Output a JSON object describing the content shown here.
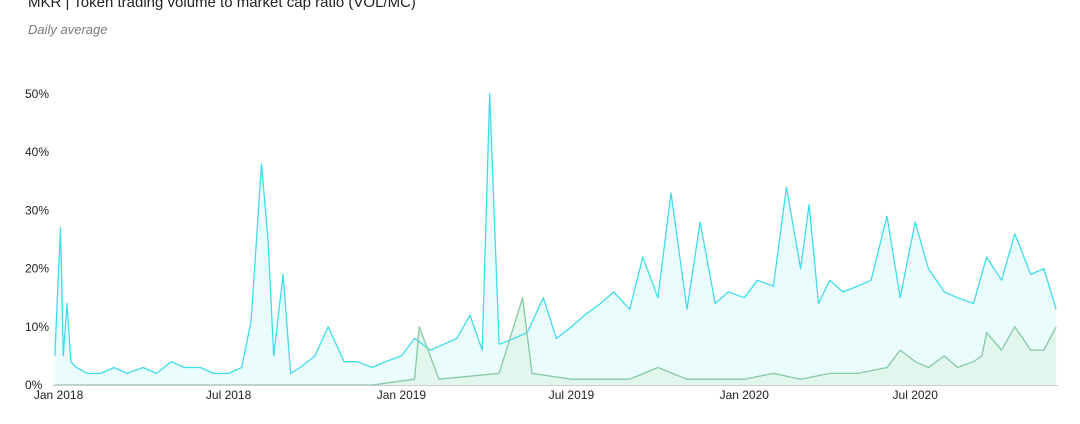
{
  "chart_data": {
    "type": "line",
    "title": "MKR | Token trading volume to market cap ratio (VOL/MC)",
    "subtitle": "Daily average",
    "y_ticks": [
      "0%",
      "10%",
      "20%",
      "30%",
      "40%",
      "50%"
    ],
    "ylim": [
      0,
      0.5
    ],
    "x_ticks": [
      {
        "label": "Jan 2018",
        "date": "2018-01-01"
      },
      {
        "label": "Jul 2018",
        "date": "2018-07-01"
      },
      {
        "label": "Jan 2019",
        "date": "2019-01-01"
      },
      {
        "label": "Jul 2019",
        "date": "2019-07-01"
      },
      {
        "label": "Jan 2020",
        "date": "2020-01-01"
      },
      {
        "label": "Jul 2020",
        "date": "2020-07-01"
      }
    ],
    "xlim": [
      "2017-12-25",
      "2020-11-30"
    ],
    "colors": {
      "series1": "#3fdde9",
      "series2": "#86c9a6",
      "fill1": "#e8fbfb",
      "fill2": "#dff5ea"
    },
    "series": [
      {
        "x": [
          "2017-12-28",
          "2018-01-03",
          "2018-01-06",
          "2018-01-10",
          "2018-01-14",
          "2018-01-20",
          "2018-02-01",
          "2018-02-15",
          "2018-03-01",
          "2018-03-15",
          "2018-04-01",
          "2018-04-15",
          "2018-05-01",
          "2018-05-15",
          "2018-06-01",
          "2018-06-15",
          "2018-07-01",
          "2018-07-15",
          "2018-07-25",
          "2018-08-05",
          "2018-08-12",
          "2018-08-18",
          "2018-08-28",
          "2018-09-05",
          "2018-09-15",
          "2018-10-01",
          "2018-10-15",
          "2018-11-01",
          "2018-11-15",
          "2018-12-01",
          "2018-12-15",
          "2019-01-01",
          "2019-01-15",
          "2019-02-01",
          "2019-02-15",
          "2019-03-01",
          "2019-03-15",
          "2019-03-28",
          "2019-04-05",
          "2019-04-15",
          "2019-05-01",
          "2019-05-15",
          "2019-06-01",
          "2019-06-15",
          "2019-07-01",
          "2019-07-15",
          "2019-08-01",
          "2019-08-15",
          "2019-09-01",
          "2019-09-15",
          "2019-10-01",
          "2019-10-15",
          "2019-11-01",
          "2019-11-15",
          "2019-12-01",
          "2019-12-15",
          "2020-01-01",
          "2020-01-15",
          "2020-02-01",
          "2020-02-15",
          "2020-03-01",
          "2020-03-10",
          "2020-03-20",
          "2020-04-01",
          "2020-04-15",
          "2020-05-01",
          "2020-05-15",
          "2020-06-01",
          "2020-06-15",
          "2020-07-01",
          "2020-07-15",
          "2020-08-01",
          "2020-08-15",
          "2020-09-01",
          "2020-09-15",
          "2020-10-01",
          "2020-10-15",
          "2020-11-01",
          "2020-11-15",
          "2020-11-28"
        ],
        "y": [
          0.05,
          0.27,
          0.05,
          0.14,
          0.04,
          0.03,
          0.02,
          0.02,
          0.03,
          0.02,
          0.03,
          0.02,
          0.04,
          0.03,
          0.03,
          0.02,
          0.02,
          0.03,
          0.11,
          0.38,
          0.25,
          0.05,
          0.19,
          0.02,
          0.03,
          0.05,
          0.1,
          0.04,
          0.04,
          0.03,
          0.04,
          0.05,
          0.08,
          0.06,
          0.07,
          0.08,
          0.12,
          0.06,
          0.5,
          0.07,
          0.08,
          0.09,
          0.15,
          0.08,
          0.1,
          0.12,
          0.14,
          0.16,
          0.13,
          0.22,
          0.15,
          0.33,
          0.13,
          0.28,
          0.14,
          0.16,
          0.15,
          0.18,
          0.17,
          0.34,
          0.2,
          0.31,
          0.14,
          0.18,
          0.16,
          0.17,
          0.18,
          0.29,
          0.15,
          0.28,
          0.2,
          0.16,
          0.15,
          0.14,
          0.22,
          0.18,
          0.26,
          0.19,
          0.2,
          0.13
        ]
      },
      {
        "x": [
          "2017-12-28",
          "2018-06-01",
          "2018-12-01",
          "2019-01-15",
          "2019-01-20",
          "2019-02-10",
          "2019-04-15",
          "2019-05-10",
          "2019-05-20",
          "2019-07-01",
          "2019-09-01",
          "2019-10-01",
          "2019-11-01",
          "2019-12-01",
          "2020-01-01",
          "2020-02-01",
          "2020-03-01",
          "2020-04-01",
          "2020-05-01",
          "2020-06-01",
          "2020-06-15",
          "2020-07-01",
          "2020-07-15",
          "2020-08-01",
          "2020-08-15",
          "2020-09-01",
          "2020-09-10",
          "2020-09-15",
          "2020-10-01",
          "2020-10-15",
          "2020-11-01",
          "2020-11-15",
          "2020-11-28"
        ],
        "y": [
          0.0,
          0.0,
          0.0,
          0.01,
          0.1,
          0.01,
          0.02,
          0.15,
          0.02,
          0.01,
          0.01,
          0.03,
          0.01,
          0.01,
          0.01,
          0.02,
          0.01,
          0.02,
          0.02,
          0.03,
          0.06,
          0.04,
          0.03,
          0.05,
          0.03,
          0.04,
          0.05,
          0.09,
          0.06,
          0.1,
          0.06,
          0.06,
          0.1
        ]
      }
    ]
  }
}
